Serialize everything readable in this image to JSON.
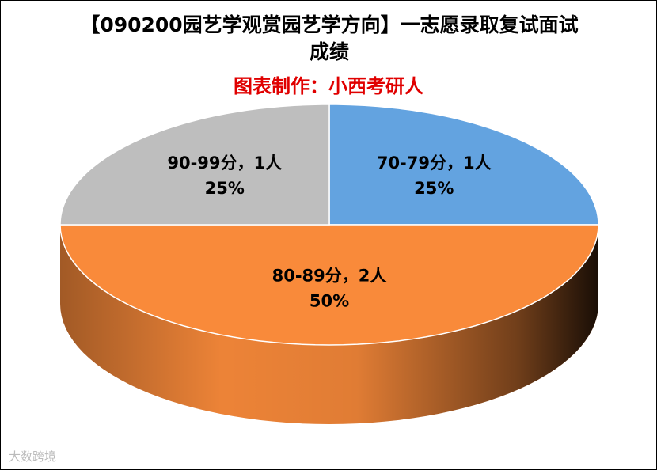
{
  "chart_data": {
    "type": "pie",
    "title": "【090200园艺学观赏园艺学方向】一志愿录取复试面试成绩",
    "subtitle": "图表制作：小西考研人",
    "categories": [
      "70-79分",
      "80-89分",
      "90-99分"
    ],
    "values": [
      25,
      50,
      25
    ],
    "value_labels": [
      "25%",
      "50%",
      "25%"
    ],
    "counts": [
      1,
      2,
      1
    ],
    "count_labels": [
      "1人",
      "2人",
      "1人"
    ],
    "separator": "，",
    "colors": [
      "#63a3e0",
      "#f98a3a",
      "#bebebe"
    ],
    "watermark": "大数跨境"
  }
}
